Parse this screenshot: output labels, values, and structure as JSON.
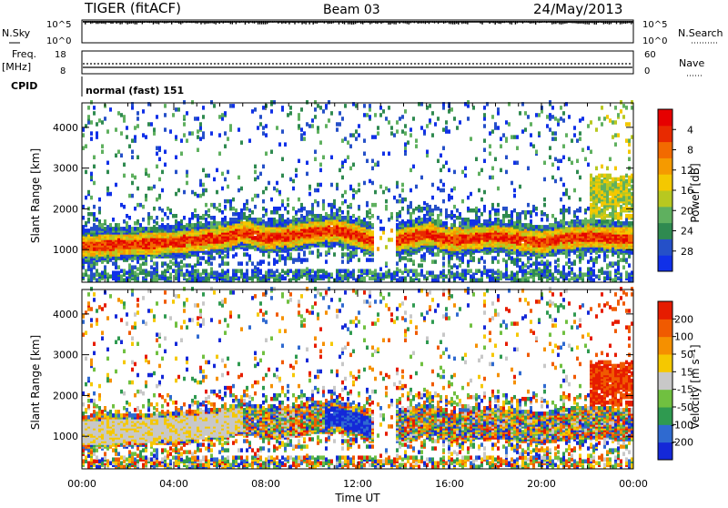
{
  "header": {
    "station": "TIGER (fitACF)",
    "beam": "Beam 03",
    "date": "24/May/2013"
  },
  "top_panels": {
    "nsky_label": "N.Sky",
    "nsearch_label": "N.Search",
    "freq_label_1": "Freq.",
    "freq_label_2": "[MHz]",
    "nave_label": "Nave",
    "cpid_label": "CPID",
    "cpid_text": "normal (fast) 151",
    "noise_ticks_left": [
      "10^5",
      "10^0"
    ],
    "noise_ticks_right": [
      "10^5",
      "10^0"
    ],
    "freq_ticks": [
      "18",
      "8"
    ],
    "nave_ticks": [
      "60",
      "0"
    ]
  },
  "chart_data": [
    {
      "type": "heatmap",
      "name": "power",
      "ylabel": "Slant Range [km]",
      "xlabel": "Time UT",
      "ylim": [
        200,
        4600
      ],
      "yticks": [
        "1000",
        "2000",
        "3000",
        "4000"
      ],
      "xticks": [
        "00:00",
        "04:00",
        "08:00",
        "12:00",
        "16:00",
        "20:00",
        "00:00"
      ],
      "colorbar": {
        "label": "Power [dB]",
        "ticks": [
          "4",
          "8",
          "12",
          "16",
          "20",
          "24",
          "28"
        ],
        "colors": [
          "#1030e8",
          "#2550c8",
          "#2f8a50",
          "#5fb05f",
          "#b8c820",
          "#f4c800",
          "#f59a00",
          "#f26a00",
          "#e82a00",
          "#e60000"
        ]
      }
    },
    {
      "type": "heatmap",
      "name": "velocity",
      "ylabel": "Slant Range [km]",
      "xlabel": "Time UT",
      "ylim": [
        200,
        4600
      ],
      "yticks": [
        "1000",
        "2000",
        "3000",
        "4000"
      ],
      "xticks": [
        "00:00",
        "04:00",
        "08:00",
        "12:00",
        "16:00",
        "20:00",
        "00:00"
      ],
      "colorbar": {
        "label": "Velocity [m s⁻¹]",
        "ticks": [
          "200",
          "100",
          "50",
          "15",
          "-15",
          "-50",
          "-100",
          "-200"
        ],
        "colors": [
          "#1428d8",
          "#2f6ad0",
          "#2f9a50",
          "#70c040",
          "#c8c8c8",
          "#f5c800",
          "#f59000",
          "#f05a00",
          "#e61c00"
        ]
      }
    }
  ]
}
